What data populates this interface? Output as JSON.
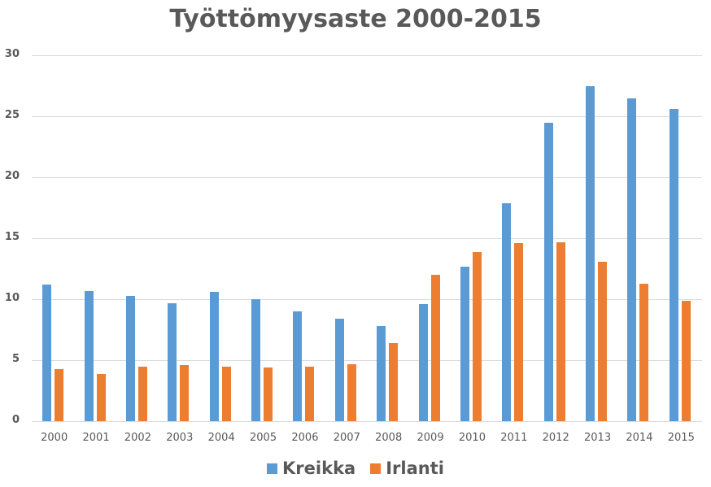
{
  "title": "Työttömyysaste 2000-2015",
  "colors": {
    "series_0": "#5b9bd5",
    "series_1": "#ed7d31",
    "grid": "#d9d9d9",
    "text": "#595959"
  },
  "legend": [
    {
      "label": "Kreikka",
      "color": "#5b9bd5"
    },
    {
      "label": "Irlanti",
      "color": "#ed7d31"
    }
  ],
  "chart_data": {
    "type": "bar",
    "title": "Työttömyysaste 2000-2015",
    "xlabel": "",
    "ylabel": "",
    "categories": [
      "2000",
      "2001",
      "2002",
      "2003",
      "2004",
      "2005",
      "2006",
      "2007",
      "2008",
      "2009",
      "2010",
      "2011",
      "2012",
      "2013",
      "2014",
      "2015"
    ],
    "series": [
      {
        "name": "Kreikka",
        "color": "#5b9bd5",
        "values": [
          11.2,
          10.7,
          10.3,
          9.7,
          10.6,
          10.0,
          9.0,
          8.4,
          7.8,
          9.6,
          12.7,
          17.9,
          24.5,
          27.5,
          26.5,
          25.6
        ]
      },
      {
        "name": "Irlanti",
        "color": "#ed7d31",
        "values": [
          4.3,
          3.9,
          4.5,
          4.6,
          4.5,
          4.4,
          4.5,
          4.7,
          6.4,
          12.0,
          13.9,
          14.6,
          14.7,
          13.1,
          11.3,
          9.9
        ]
      }
    ],
    "yticks": [
      0,
      5,
      10,
      15,
      20,
      25,
      30
    ],
    "ylim": [
      0,
      30
    ],
    "grid": true,
    "legend_position": "bottom"
  }
}
